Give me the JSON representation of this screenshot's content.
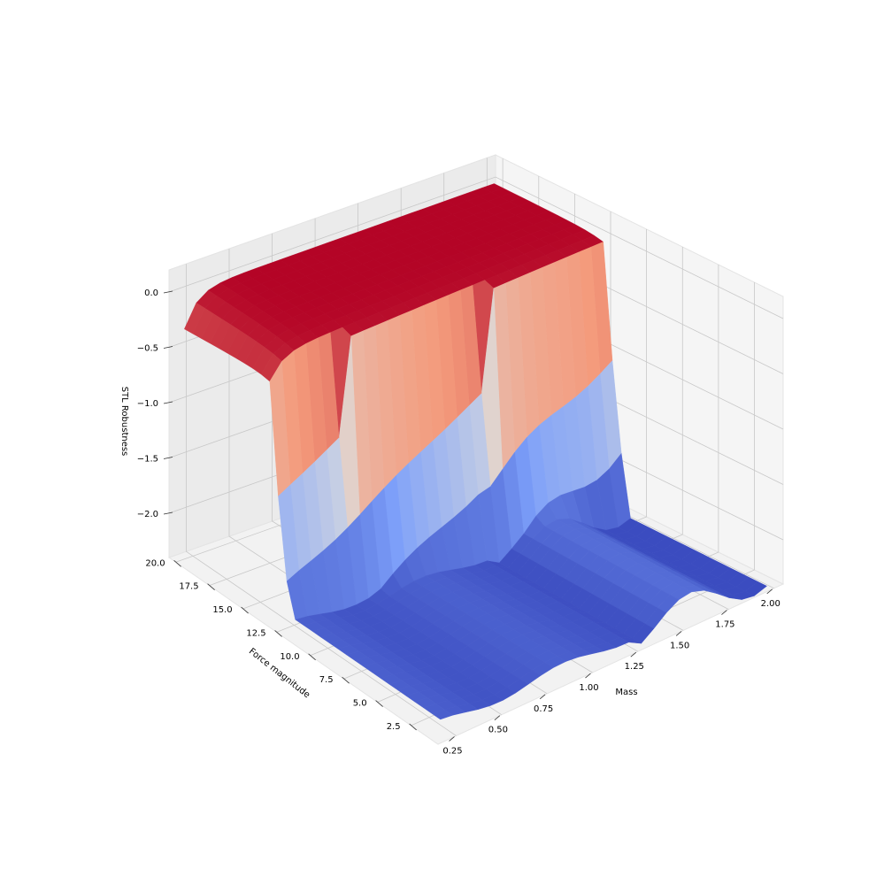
{
  "chart_data": {
    "type": "surface",
    "colormap": "coolwarm",
    "xlabel": "Mass",
    "ylabel": "Force magnitude",
    "zlabel": "STL Robustness",
    "x_ticks": [
      "0.25",
      "0.50",
      "0.75",
      "1.00",
      "1.25",
      "1.50",
      "1.75",
      "2.00"
    ],
    "y_ticks": [
      "2.5",
      "5.0",
      "7.5",
      "10.0",
      "12.5",
      "15.0",
      "17.5",
      "20.0"
    ],
    "z_ticks": [
      "−2.0",
      "−1.5",
      "−1.0",
      "−0.5",
      "0.0"
    ],
    "x_range": [
      0.15,
      2.05
    ],
    "y_range": [
      0.5,
      20.5
    ],
    "z_range": [
      -2.4,
      0.2
    ],
    "grid": true,
    "surface_summary": {
      "mass": [
        0.2,
        2.0
      ],
      "force_magnitude": [
        1.0,
        20.0
      ],
      "plateau_value": 0.0,
      "plateau_region": "high force magnitude / all masses",
      "minimum_value": -2.4,
      "minimum_region": "low force magnitude / high mass"
    }
  }
}
